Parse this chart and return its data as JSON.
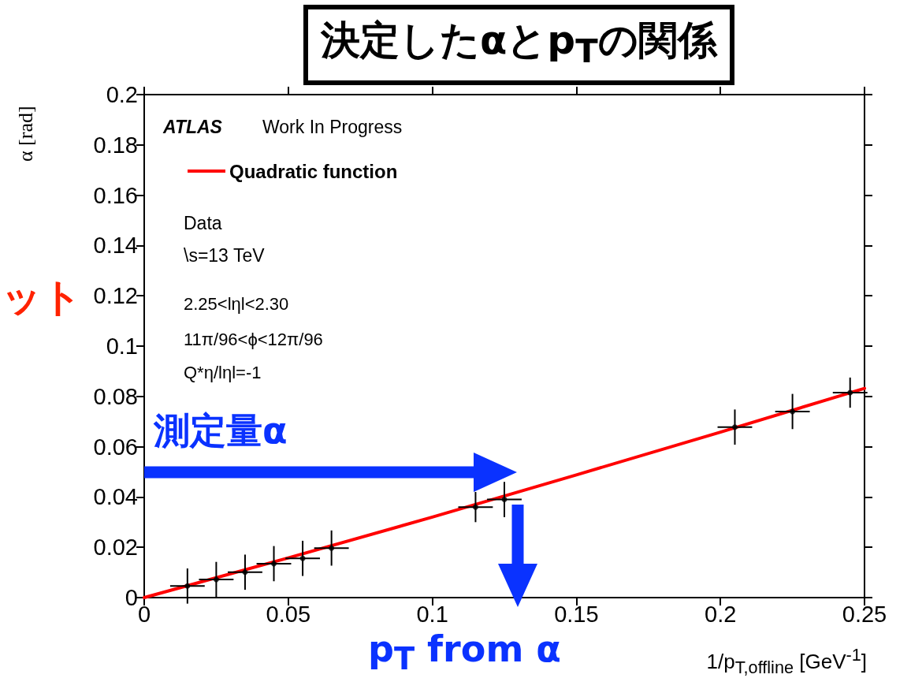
{
  "chart_data": {
    "type": "scatter",
    "title": "決定したαとp$_{T}$の関係",
    "xlabel": "1/p$_{T,offline}$ [GeV$^{-1}$]",
    "ylabel": "α [rad]",
    "x": [
      0.015,
      0.025,
      0.035,
      0.045,
      0.055,
      0.065,
      0.115,
      0.125,
      0.205,
      0.225,
      0.245
    ],
    "series": [
      {
        "color": "#000000",
        "values": [
          0.0046,
          0.0072,
          0.0101,
          0.0135,
          0.0156,
          0.0197,
          0.036,
          0.039,
          0.0678,
          0.074,
          0.0815
        ],
        "errors": [
          0.007,
          0.007,
          0.007,
          0.007,
          0.007,
          0.007,
          0.006,
          0.007,
          0.007,
          0.007,
          0.006
        ],
        "xerrors": [
          0.006,
          0.006,
          0.006,
          0.006,
          0.006,
          0.006,
          0.006,
          0.006,
          0.006,
          0.006,
          0.006
        ]
      },
      {
        "type": "line",
        "name": "Quadratic function",
        "color": "#ff0000",
        "marker": "none",
        "line_style": "solid",
        "x": [
          0,
          0.05,
          0.1,
          0.15,
          0.2,
          0.25
        ],
        "values": [
          0,
          0.0158,
          0.032,
          0.0488,
          0.0658,
          0.0832
        ]
      }
    ],
    "xlim": [
      0,
      0.25
    ],
    "xticks": [
      0,
      0.05,
      0.1,
      0.15,
      0.2,
      0.25
    ],
    "ylim": [
      0,
      0.2
    ],
    "yticks": [
      0,
      0.02,
      0.04,
      0.06,
      0.08,
      0.1,
      0.12,
      0.14,
      0.16,
      0.18,
      0.2
    ],
    "grid": false,
    "legend": "top left",
    "annotations": [
      "ATLAS",
      "Work In Progress",
      "Data",
      "\\s=13 TeV",
      "2.25<lηl<2.30",
      "11π/96<ϕ<12π/96",
      "Q*η/lηl=-1",
      "測定量α",
      "p$_{T}$ from α",
      "ット"
    ]
  }
}
